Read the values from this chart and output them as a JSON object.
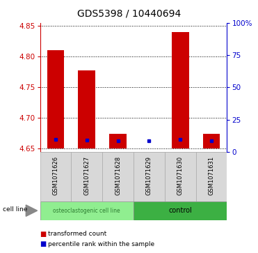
{
  "title": "GDS5398 / 10440694",
  "categories": [
    "GSM1071626",
    "GSM1071627",
    "GSM1071628",
    "GSM1071629",
    "GSM1071630",
    "GSM1071631"
  ],
  "red_values": [
    4.81,
    4.778,
    4.674,
    4.651,
    4.84,
    4.674
  ],
  "blue_values": [
    4.665,
    4.664,
    4.663,
    4.663,
    4.665,
    4.663
  ],
  "ylim_left": [
    4.645,
    4.855
  ],
  "ylim_right": [
    0,
    100
  ],
  "right_ticks": [
    0,
    25,
    50,
    75,
    100
  ],
  "right_ticklabels": [
    "0",
    "25",
    "50",
    "75",
    "100%"
  ],
  "left_ticks": [
    4.65,
    4.7,
    4.75,
    4.8,
    4.85
  ],
  "left_color": "#cc0000",
  "right_color": "#0000cc",
  "bar_bottom": 4.651,
  "group_labels": [
    "osteoclastogenic cell line",
    "control"
  ],
  "group_colors": [
    "#90ee90",
    "#3cb043"
  ],
  "cell_line_label": "cell line",
  "legend_red": "transformed count",
  "legend_blue": "percentile rank within the sample",
  "plot_bg": "#ffffff",
  "title_fontsize": 10,
  "bar_width": 0.55
}
